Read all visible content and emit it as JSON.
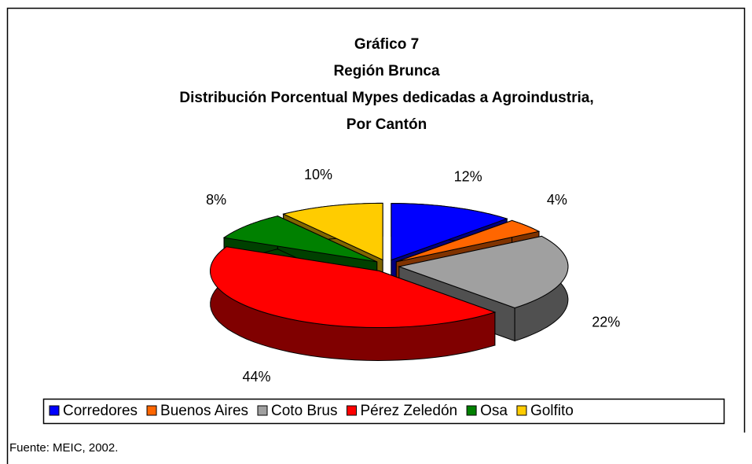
{
  "chart_data": {
    "type": "pie3d",
    "title": [
      "Gráfico 7",
      "Región Brunca",
      "Distribución Porcentual Mypes dedicadas a Agroindustria,",
      "Por Cantón"
    ],
    "categories": [
      "Corredores",
      "Buenos Aires",
      "Coto Brus",
      "Pérez Zeledón",
      "Osa",
      "Golfito"
    ],
    "values": [
      12,
      4,
      22,
      44,
      8,
      10
    ],
    "value_labels": [
      "12%",
      "4%",
      "22%",
      "44%",
      "8%",
      "10%"
    ],
    "colors": [
      "#0000ff",
      "#ff6600",
      "#a0a0a0",
      "#ff0000",
      "#008000",
      "#ffcc00"
    ],
    "legend": "bottom",
    "source": "Fuente: MEIC, 2002."
  }
}
